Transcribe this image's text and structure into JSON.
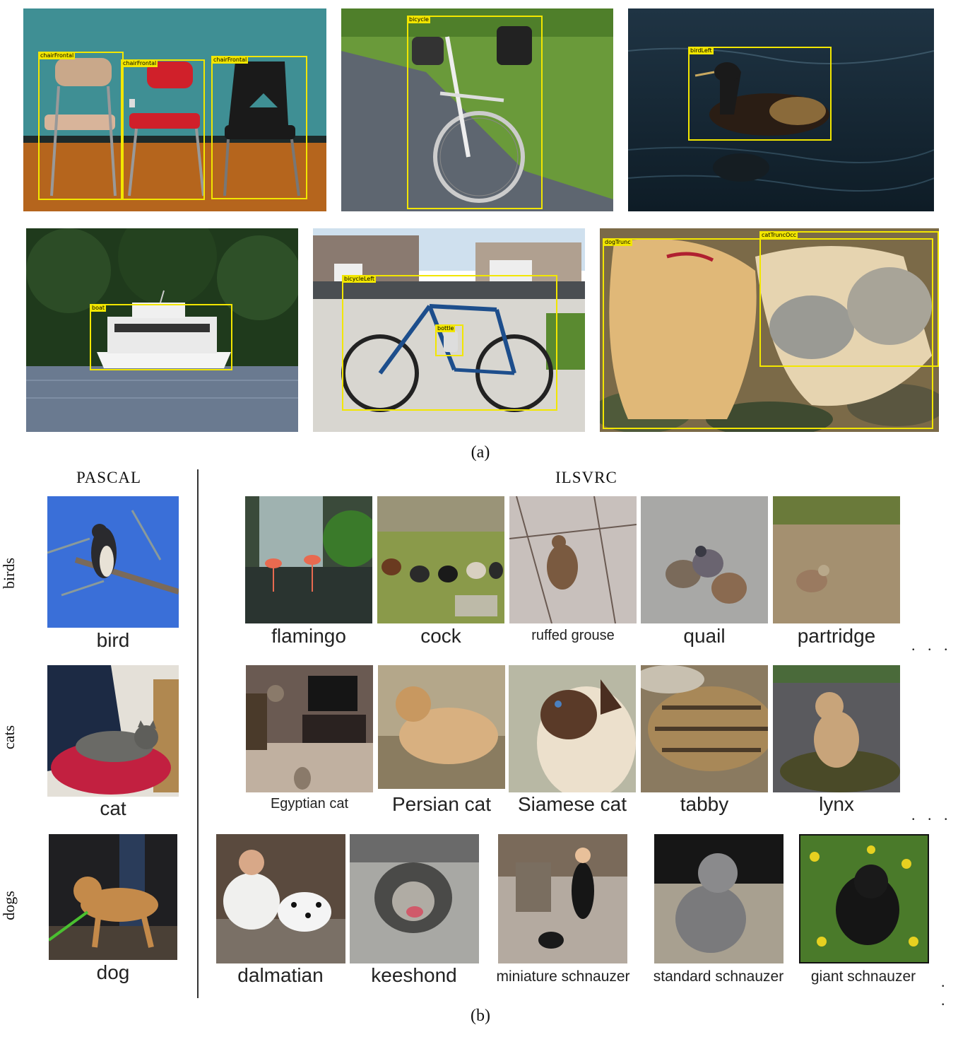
{
  "panel_a": {
    "caption": "(a)",
    "images": [
      {
        "name": "chairs",
        "tags": [
          "chairFrontal",
          "chairFrontal",
          "chairFrontal"
        ]
      },
      {
        "name": "bicycle",
        "tags": [
          "bicycle"
        ]
      },
      {
        "name": "bird",
        "tags": [
          "birdLeft"
        ]
      },
      {
        "name": "boat",
        "tags": [
          "boat"
        ]
      },
      {
        "name": "bicycle-bottle",
        "tags": [
          "bicycleLeft",
          "bottle"
        ]
      },
      {
        "name": "dog-cat",
        "tags": [
          "dogTrunc",
          "catTruncOcc"
        ]
      }
    ]
  },
  "panel_b": {
    "caption": "(b)",
    "pascal_heading": "PASCAL",
    "ilsvrc_heading": "ILSVRC",
    "rows": [
      {
        "category": "birds",
        "pascal_label": "bird",
        "ilsvrc_labels": [
          "flamingo",
          "cock",
          "ruffed grouse",
          "quail",
          "partridge"
        ]
      },
      {
        "category": "cats",
        "pascal_label": "cat",
        "ilsvrc_labels": [
          "Egyptian cat",
          "Persian cat",
          "Siamese cat",
          "tabby",
          "lynx"
        ]
      },
      {
        "category": "dogs",
        "pascal_label": "dog",
        "ilsvrc_labels": [
          "dalmatian",
          "keeshond",
          "miniature schnauzer",
          "standard schnauzer",
          "giant schnauzer"
        ]
      }
    ],
    "ellipsis": ". . .",
    "ellipsis_short": ". ."
  }
}
